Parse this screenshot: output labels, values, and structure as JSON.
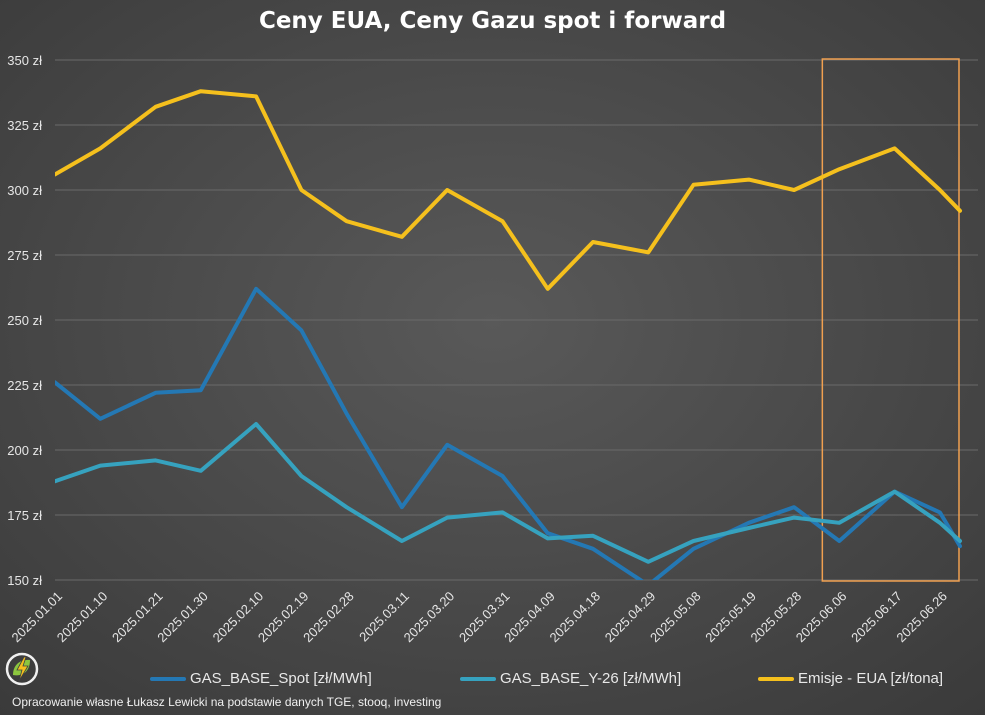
{
  "title": "Ceny EUA, Ceny Gazu spot i forward",
  "footer": "Opracowanie własne Łukasz Lewicki na podstawie danych TGE, stooq, investing",
  "logo_icon": "lightning-leaf-logo",
  "colors": {
    "background": "#404040",
    "gas_spot": "#2478b4",
    "gas_y26": "#36a2bf",
    "eua": "#f5c01d",
    "highlight_box": "#f0a050"
  },
  "chart_data": {
    "type": "line",
    "title": "Ceny EUA, Ceny Gazu spot i forward",
    "ylim": [
      150,
      350
    ],
    "y_ticks": [
      "150 zł",
      "175 zł",
      "200 zł",
      "225 zł",
      "250 zł",
      "275 zł",
      "300 zł",
      "325 zł",
      "350 zł"
    ],
    "y_tick_values": [
      150,
      175,
      200,
      225,
      250,
      275,
      300,
      325,
      350
    ],
    "x_ticks": [
      "2025.01.01",
      "2025.01.10",
      "2025.01.21",
      "2025.01.30",
      "2025.02.10",
      "2025.02.19",
      "2025.02.28",
      "2025.03.11",
      "2025.03.20",
      "2025.03.31",
      "2025.04.09",
      "2025.04.18",
      "2025.04.29",
      "2025.05.08",
      "2025.05.19",
      "2025.05.28",
      "2025.06.06",
      "2025.06.17",
      "2025.06.26"
    ],
    "grid": true,
    "legend_position": "bottom",
    "highlight_range": [
      "2025.06.06",
      "2025.06.30"
    ],
    "series": [
      {
        "name": "GAS_BASE_Spot [zł/MWh]",
        "x": [
          "2025.01.01",
          "2025.01.10",
          "2025.01.21",
          "2025.01.30",
          "2025.02.10",
          "2025.02.19",
          "2025.02.28",
          "2025.03.11",
          "2025.03.20",
          "2025.03.31",
          "2025.04.09",
          "2025.04.18",
          "2025.04.29",
          "2025.05.08",
          "2025.05.19",
          "2025.05.28",
          "2025.06.06",
          "2025.06.17",
          "2025.06.26",
          "2025.06.30"
        ],
        "values": [
          226,
          212,
          222,
          223,
          262,
          246,
          214,
          178,
          202,
          190,
          168,
          162,
          148,
          162,
          172,
          178,
          165,
          184,
          176,
          163
        ]
      },
      {
        "name": "GAS_BASE_Y-26 [zł/MWh]",
        "x": [
          "2025.01.01",
          "2025.01.10",
          "2025.01.21",
          "2025.01.30",
          "2025.02.10",
          "2025.02.19",
          "2025.02.28",
          "2025.03.11",
          "2025.03.20",
          "2025.03.31",
          "2025.04.09",
          "2025.04.18",
          "2025.04.29",
          "2025.05.08",
          "2025.05.19",
          "2025.05.28",
          "2025.06.06",
          "2025.06.17",
          "2025.06.26",
          "2025.06.30"
        ],
        "values": [
          188,
          194,
          196,
          192,
          210,
          190,
          178,
          165,
          174,
          176,
          166,
          167,
          157,
          165,
          170,
          174,
          172,
          184,
          172,
          165
        ]
      },
      {
        "name": "Emisje - EUA [zł/tona]",
        "x": [
          "2025.01.01",
          "2025.01.10",
          "2025.01.21",
          "2025.01.30",
          "2025.02.10",
          "2025.02.19",
          "2025.02.28",
          "2025.03.11",
          "2025.03.20",
          "2025.03.31",
          "2025.04.09",
          "2025.04.18",
          "2025.04.29",
          "2025.05.08",
          "2025.05.19",
          "2025.05.28",
          "2025.06.06",
          "2025.06.17",
          "2025.06.26",
          "2025.06.30"
        ],
        "values": [
          306,
          316,
          332,
          338,
          336,
          300,
          288,
          282,
          300,
          288,
          262,
          280,
          276,
          302,
          304,
          300,
          308,
          316,
          300,
          292
        ]
      }
    ]
  }
}
